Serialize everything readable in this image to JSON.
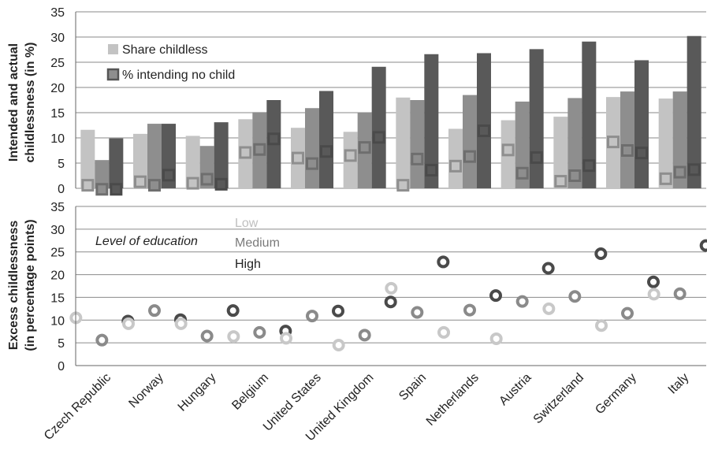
{
  "countries": [
    "Czech Republic",
    "Norway",
    "Hungary",
    "Belgium",
    "United States",
    "United Kingdom",
    "Spain",
    "Netherlands",
    "Austria",
    "Switzerland",
    "Germany",
    "Italy"
  ],
  "chart_data": [
    {
      "type": "bar",
      "ylabel_lines": [
        "Intended and actual",
        "childlessness (in %)"
      ],
      "ylim": [
        0,
        35
      ],
      "yticks": [
        0,
        5,
        10,
        15,
        20,
        25,
        30,
        35
      ],
      "grid": true,
      "legend": {
        "placement": "top-left",
        "entries": [
          "Share childless",
          "% intending no child"
        ]
      },
      "bar_colors": [
        "#c3c3c3",
        "#8e8e8e",
        "#595959"
      ],
      "marker_colors": [
        "#8e8e8e",
        "#6e6e6e",
        "#4a4a4a"
      ],
      "series": [
        {
          "level": "low",
          "kind": "bar",
          "values": [
            11.6,
            10.8,
            10.4,
            13.7,
            12.0,
            11.2,
            18.0,
            11.8,
            13.5,
            14.2,
            18.1,
            17.8
          ]
        },
        {
          "level": "medium",
          "kind": "bar",
          "values": [
            5.6,
            12.8,
            8.4,
            15.1,
            15.9,
            15.0,
            17.5,
            18.5,
            17.2,
            17.9,
            19.2,
            19.2
          ]
        },
        {
          "level": "high",
          "kind": "bar",
          "values": [
            9.9,
            12.8,
            13.1,
            17.5,
            19.3,
            24.1,
            26.6,
            26.8,
            27.6,
            29.1,
            25.4,
            30.2
          ]
        },
        {
          "level": "low",
          "kind": "marker",
          "values": [
            0.6,
            1.3,
            1.0,
            7.1,
            6.0,
            6.5,
            0.6,
            4.4,
            7.6,
            1.4,
            9.2,
            1.9
          ]
        },
        {
          "level": "medium",
          "kind": "marker",
          "values": [
            -0.2,
            0.6,
            1.8,
            7.7,
            4.9,
            8.1,
            5.8,
            6.3,
            3.0,
            2.5,
            7.5,
            3.2
          ]
        },
        {
          "level": "high",
          "kind": "marker",
          "values": [
            -0.2,
            2.6,
            0.8,
            9.8,
            7.3,
            10.1,
            3.6,
            11.4,
            6.1,
            4.5,
            7.0,
            3.7
          ]
        }
      ]
    },
    {
      "type": "scatter",
      "ylabel_lines": [
        "Excess childlessness",
        "(in percentage points)"
      ],
      "ylim": [
        0,
        35
      ],
      "yticks": [
        0,
        5,
        10,
        15,
        20,
        25,
        30,
        35
      ],
      "grid": true,
      "legend": {
        "placement": "top-left",
        "title": "Level of education",
        "entries": [
          "Low",
          "Medium",
          "High"
        ]
      },
      "colors": [
        "#c8c8c8",
        "#8a8a8a",
        "#4a4a4a"
      ],
      "series": [
        {
          "level": "low",
          "values": [
            10.5,
            9.2,
            9.2,
            6.4,
            6.0,
            4.5,
            17.0,
            7.3,
            5.9,
            12.5,
            8.8,
            15.7
          ]
        },
        {
          "level": "medium",
          "values": [
            5.6,
            12.1,
            6.5,
            7.3,
            10.9,
            6.7,
            11.7,
            12.2,
            14.1,
            15.2,
            11.5,
            15.8
          ]
        },
        {
          "level": "high",
          "values": [
            9.8,
            10.1,
            12.1,
            7.6,
            12.0,
            14.0,
            22.8,
            15.4,
            21.4,
            24.6,
            18.4,
            26.4
          ]
        }
      ]
    }
  ]
}
